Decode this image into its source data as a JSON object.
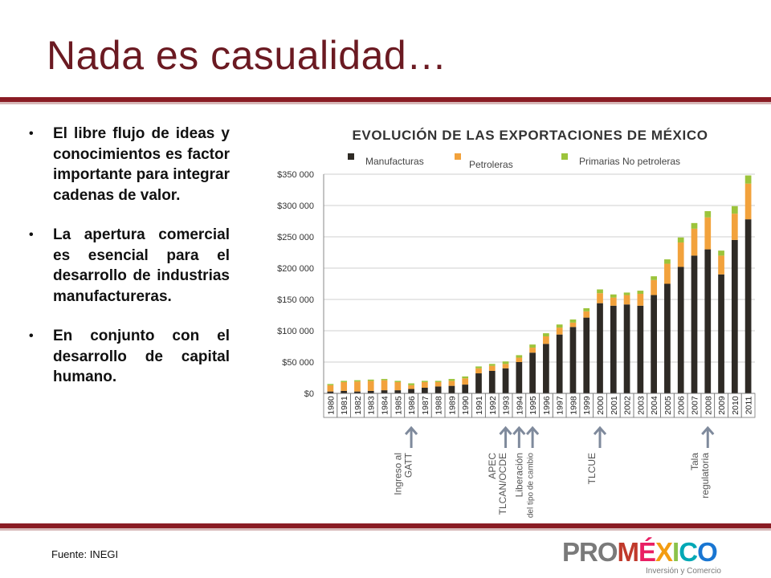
{
  "slide": {
    "title": "Nada es casualidad…",
    "bullets": [
      "El libre flujo de ideas y conocimientos es factor importante para integrar cadenas de valor.",
      "La apertura comercial es esencial para el desarrollo de industrias manufactureras.",
      "En conjunto con el desarrollo de capital humano."
    ],
    "bullet_symbol": "•",
    "source": "Fuente: INEGI",
    "logo": {
      "pro": "PRO",
      "mexico": "MÉXICO",
      "tagline": "Inversión y Comercio"
    },
    "colors": {
      "title": "#6b1a22",
      "band": "#8a1c24"
    }
  },
  "chart_data": {
    "type": "bar",
    "stacked": true,
    "title": "EVOLUCIÓN DE LAS EXPORTACIONES DE MÉXICO",
    "categories": [
      "1980",
      "1981",
      "1982",
      "1983",
      "1984",
      "1985",
      "1986",
      "1987",
      "1988",
      "1989",
      "1990",
      "1991",
      "1992",
      "1993",
      "1994",
      "1995",
      "1996",
      "1997",
      "1998",
      "1999",
      "2000",
      "2001",
      "2002",
      "2003",
      "2004",
      "2005",
      "2006",
      "2007",
      "2008",
      "2009",
      "2010",
      "2011"
    ],
    "series": [
      {
        "name": "Manufacturas",
        "color": "#2e2a25",
        "values": [
          3000,
          4000,
          3000,
          4000,
          5000,
          5000,
          7000,
          9000,
          11000,
          12000,
          14000,
          32000,
          36000,
          40000,
          50000,
          65000,
          79000,
          94000,
          106000,
          121000,
          144000,
          140000,
          142000,
          140000,
          157000,
          175000,
          202000,
          220000,
          230000,
          190000,
          245000,
          278000
        ]
      },
      {
        "name": "Petroleras",
        "color": "#f2a23c",
        "values": [
          10000,
          14000,
          16000,
          16000,
          16000,
          13000,
          6000,
          9000,
          7000,
          8000,
          10000,
          8000,
          8000,
          7000,
          7000,
          8000,
          12000,
          11000,
          7000,
          10000,
          16000,
          13000,
          15000,
          19000,
          24000,
          32000,
          39000,
          43000,
          51000,
          30000,
          42000,
          57000
        ]
      },
      {
        "name": "Primarias No petroleras",
        "color": "#9cc43b",
        "values": [
          2000,
          2000,
          2000,
          2000,
          2000,
          2000,
          3000,
          2000,
          2000,
          3000,
          3000,
          3000,
          3000,
          4000,
          4000,
          5000,
          5000,
          5000,
          5000,
          5000,
          6000,
          5000,
          4000,
          5000,
          6000,
          7000,
          8000,
          9000,
          10000,
          8000,
          12000,
          13000
        ]
      }
    ],
    "ylim": [
      0,
      350000
    ],
    "yticks": [
      0,
      50000,
      100000,
      150000,
      200000,
      250000,
      300000,
      350000
    ],
    "ytick_labels": [
      "$0",
      "$50 000",
      "$100 000",
      "$150 000",
      "$200 000",
      "$250 000",
      "$300 000",
      "$350 000"
    ],
    "legend_position": "top",
    "annotations": [
      {
        "year": "1986",
        "lines": [
          "Ingreso al",
          "GATT"
        ]
      },
      {
        "year": "1993",
        "lines": [
          "APEC",
          "TLCAN/OCDE"
        ]
      },
      {
        "year": "1994",
        "lines": []
      },
      {
        "year": "1995",
        "lines": [
          "Liberación",
          "del tipo de cambio"
        ]
      },
      {
        "year": "2000",
        "lines": [
          "TLCUE"
        ]
      },
      {
        "year": "2008",
        "lines": [
          "Tala",
          "regulatoria"
        ]
      }
    ]
  }
}
